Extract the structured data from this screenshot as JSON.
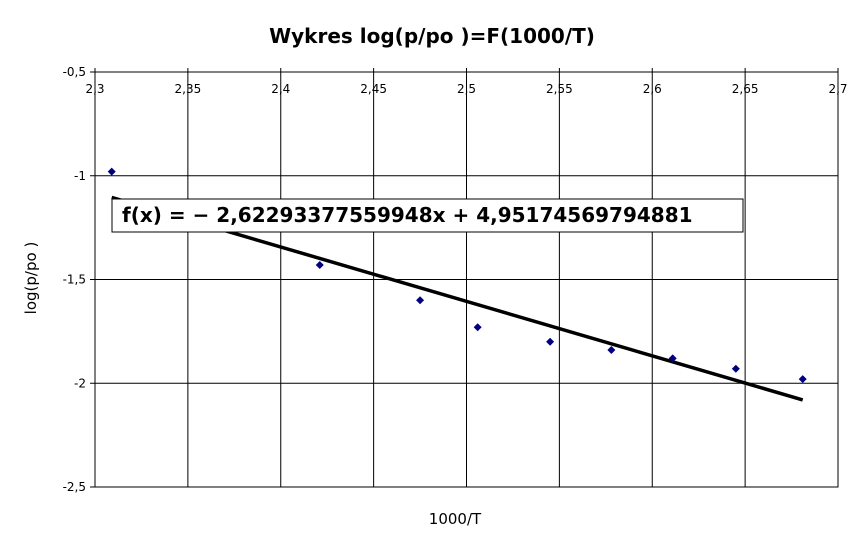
{
  "chart_data": {
    "type": "scatter",
    "title": "Wykres  log(p/po )=F(1000/T)",
    "xlabel": "1000/T",
    "ylabel": "log(p/po )",
    "xlim": [
      2.3,
      2.7
    ],
    "ylim": [
      -2.5,
      -0.5
    ],
    "x_ticks": [
      "2,3",
      "2,35",
      "2,4",
      "2,45",
      "2,5",
      "2,55",
      "2,6",
      "2,65",
      "2,7"
    ],
    "x_tick_values": [
      2.3,
      2.35,
      2.4,
      2.45,
      2.5,
      2.55,
      2.6,
      2.65,
      2.7
    ],
    "y_ticks": [
      "-0,5",
      "-1",
      "-1,5",
      "-2",
      "-2,5"
    ],
    "y_tick_values": [
      -0.5,
      -1,
      -1.5,
      -2,
      -2.5
    ],
    "x_axis_position": "top",
    "grid": true,
    "legend": "none",
    "series": [
      {
        "marker": "diamond",
        "color": "#000080",
        "points": [
          {
            "x": 2.309,
            "y": -0.98
          },
          {
            "x": 2.421,
            "y": -1.43
          },
          {
            "x": 2.475,
            "y": -1.6
          },
          {
            "x": 2.506,
            "y": -1.73
          },
          {
            "x": 2.545,
            "y": -1.8
          },
          {
            "x": 2.578,
            "y": -1.84
          },
          {
            "x": 2.611,
            "y": -1.88
          },
          {
            "x": 2.645,
            "y": -1.93
          },
          {
            "x": 2.681,
            "y": -1.98
          }
        ]
      }
    ],
    "trendline": {
      "slope": -2.62293377559948,
      "intercept": 4.95174569794881,
      "x_range": [
        2.309,
        2.681
      ],
      "color": "#000000",
      "equation": "f(x) = − 2,62293377559948x + 4,95174569794881"
    }
  }
}
